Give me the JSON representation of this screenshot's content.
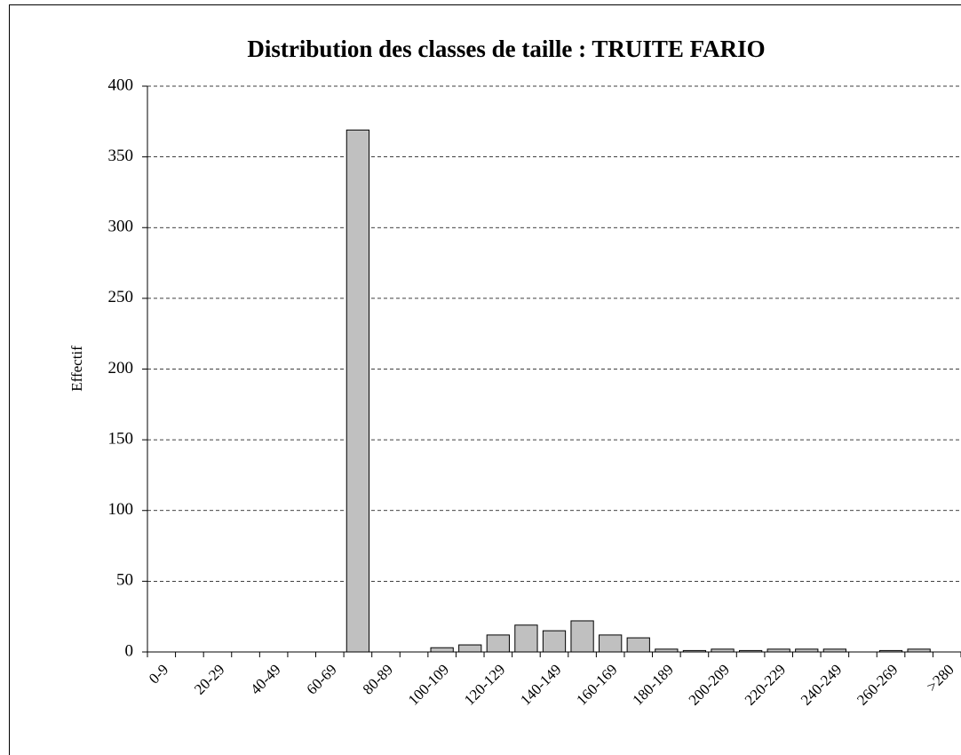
{
  "chart_data": {
    "type": "bar",
    "title": "Distribution des classes de taille : TRUITE FARIO",
    "y_label": "Effectif",
    "categories": [
      "0-9",
      null,
      "20-29",
      null,
      "40-49",
      null,
      "60-69",
      null,
      "80-89",
      null,
      "100-109",
      null,
      "120-129",
      null,
      "140-149",
      null,
      "160-169",
      null,
      "180-189",
      null,
      "200-209",
      null,
      "220-229",
      null,
      "240-249",
      null,
      "260-269",
      null,
      ">280"
    ],
    "values": [
      0,
      0,
      0,
      0,
      0,
      0,
      0,
      369,
      0,
      0,
      3,
      5,
      12,
      19,
      15,
      22,
      12,
      10,
      2,
      1,
      2,
      1,
      2,
      2,
      2,
      0,
      1,
      2,
      0
    ],
    "color": "#c0c0c0",
    "ylim": [
      0,
      400
    ],
    "yticks": [
      0,
      50,
      100,
      150,
      200,
      250,
      300,
      350,
      400
    ],
    "grid": true
  }
}
